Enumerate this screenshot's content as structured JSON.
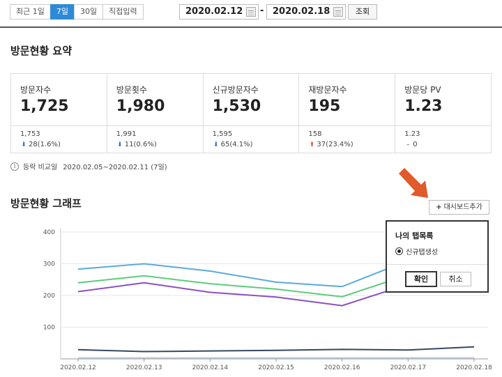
{
  "period_tabs": [
    "최근 1일",
    "7일",
    "30일",
    "직접입력"
  ],
  "active_period": "7일",
  "date_range": {
    "start": "2020.02.12",
    "separator": "-",
    "end": "2020.02.18"
  },
  "query_button": "조회",
  "summary": {
    "title": "방문현황 요약",
    "stats": [
      {
        "label": "방문자수",
        "value": "1,725",
        "prev": "1,753",
        "change": "28(1.6%)",
        "direction": "down"
      },
      {
        "label": "방문횟수",
        "value": "1,980",
        "prev": "1,991",
        "change": "11(0.6%)",
        "direction": "down"
      },
      {
        "label": "신규방문자수",
        "value": "1,530",
        "prev": "1,595",
        "change": "65(4.1%)",
        "direction": "down"
      },
      {
        "label": "재방문자수",
        "value": "195",
        "prev": "158",
        "change": "37(23.4%)",
        "direction": "up"
      },
      {
        "label": "방문당 PV",
        "value": "1.23",
        "prev": "1.23",
        "change": "0",
        "direction": "flat"
      }
    ],
    "compare_label": "등락 비교일",
    "compare_range": "2020.02.05~2020.02.11 (7일)"
  },
  "graph": {
    "title": "방문현황 그래프",
    "add_dashboard_label": "대시보드추가"
  },
  "popup": {
    "title": "나의 탭목록",
    "radio_label": "신규탭생성",
    "confirm": "확인",
    "cancel": "취소"
  },
  "colors": {
    "accent": "#2e8ad8",
    "arrow": "#e05a2b",
    "down": "#2e6fc9",
    "up": "#e04a2a"
  },
  "chart_data": {
    "type": "line",
    "categories": [
      "2020.02.12",
      "2020.02.13",
      "2020.02.14",
      "2020.02.15",
      "2020.02.16",
      "2020.02.17",
      "2020.02.18"
    ],
    "yticks": [
      100,
      200,
      300,
      400
    ],
    "ylim": [
      0,
      400
    ],
    "grid": true,
    "series": [
      {
        "color": "#5aa9dc",
        "values": [
          283,
          300,
          277,
          242,
          228,
          310,
          320
        ]
      },
      {
        "color": "#5ccc7a",
        "values": [
          240,
          262,
          237,
          220,
          196,
          265,
          278
        ]
      },
      {
        "color": "#8a4fc0",
        "values": [
          212,
          240,
          210,
          195,
          168,
          235,
          250
        ]
      },
      {
        "color": "#34495e",
        "values": [
          29,
          23,
          25,
          27,
          30,
          28,
          38
        ]
      },
      {
        "color": "#c0c8d8",
        "values": [
          3,
          3,
          3,
          3,
          3,
          3,
          3
        ]
      }
    ]
  }
}
